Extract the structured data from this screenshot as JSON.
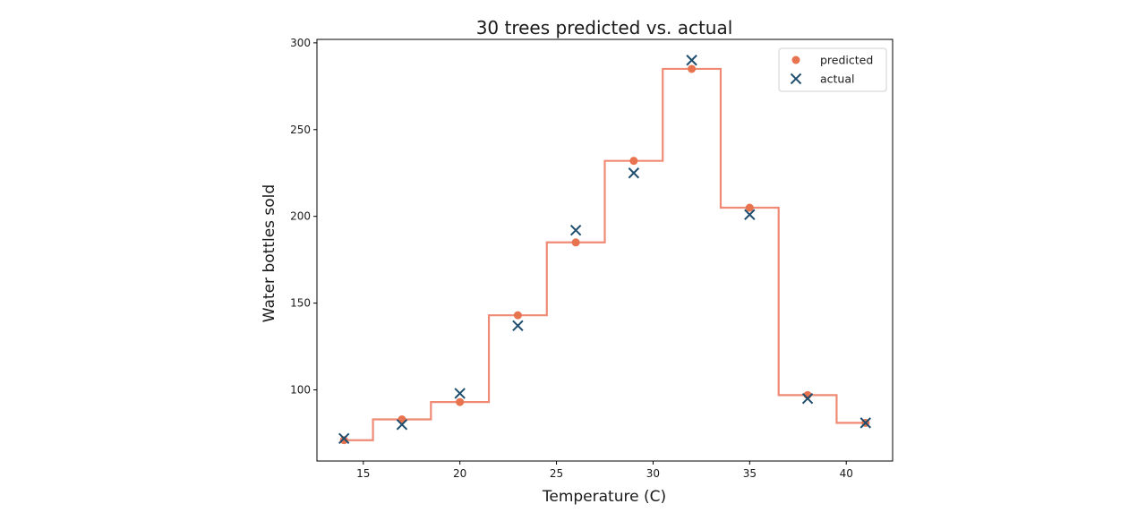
{
  "chart_data": {
    "type": "line",
    "title": "30 trees predicted vs. actual",
    "xlabel": "Temperature (C)",
    "ylabel": "Water bottles sold",
    "xlim": [
      12.6,
      42.4
    ],
    "ylim": [
      59,
      302
    ],
    "xticks": [
      15,
      20,
      25,
      30,
      35,
      40
    ],
    "yticks": [
      100,
      150,
      200,
      250,
      300
    ],
    "grid": false,
    "legend_position": "top-right",
    "step_edges": [
      14,
      15.5,
      18.5,
      21.5,
      24.5,
      27.5,
      30.5,
      33.5,
      36.5,
      39.5,
      41
    ],
    "series": [
      {
        "name": "predicted",
        "marker": "circle",
        "color": "#e8734f",
        "x": [
          14,
          17,
          20,
          23,
          26,
          29,
          32,
          35,
          38,
          41
        ],
        "y": [
          71,
          83,
          93,
          143,
          185,
          232,
          285,
          205,
          97,
          81
        ]
      },
      {
        "name": "actual",
        "marker": "x",
        "color": "#1f4e6e",
        "x": [
          14,
          17,
          20,
          23,
          26,
          29,
          32,
          35,
          38,
          41
        ],
        "y": [
          72,
          80,
          98,
          137,
          192,
          225,
          290,
          201,
          95,
          81
        ]
      }
    ],
    "step_line_color": "#ef8a75"
  }
}
